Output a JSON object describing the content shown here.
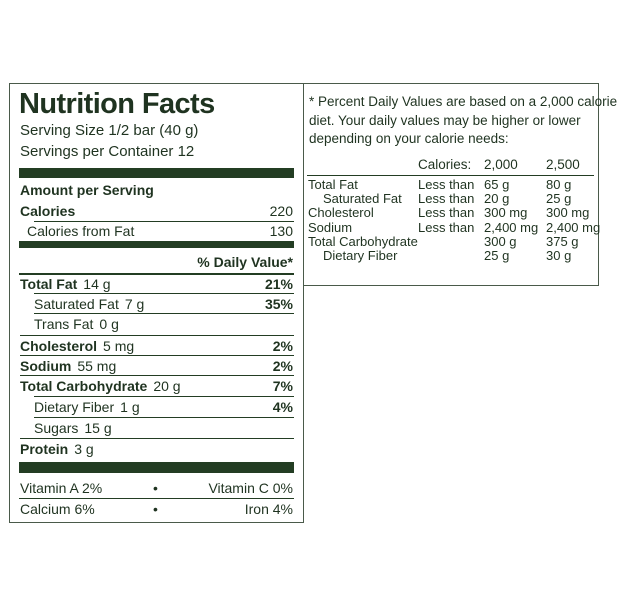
{
  "title": "Nutrition Facts",
  "serving_size": "Serving Size 1/2 bar (40 g)",
  "servings": "Servings per Container 12",
  "amount_header": "Amount per Serving",
  "calories": {
    "label": "Calories",
    "value": "220"
  },
  "calories_from_fat": {
    "label": "Calories from Fat",
    "value": "130"
  },
  "dv_header": "% Daily Value*",
  "nutrients": [
    {
      "label": "Total Fat",
      "amount": "14 g",
      "dv": "21%",
      "bold": true,
      "indent": false
    },
    {
      "label": "Saturated Fat",
      "amount": "7 g",
      "dv": "35%",
      "bold": false,
      "indent": true
    },
    {
      "label": "Trans Fat",
      "amount": "0 g",
      "dv": null,
      "bold": false,
      "indent": true
    },
    {
      "label": "Cholesterol",
      "amount": "5 mg",
      "dv": "2%",
      "bold": true,
      "indent": false
    },
    {
      "label": "Sodium",
      "amount": "55 mg",
      "dv": "2%",
      "bold": true,
      "indent": false
    },
    {
      "label": "Total Carbohydrate",
      "amount": "20 g",
      "dv": "7%",
      "bold": true,
      "indent": false
    },
    {
      "label": "Dietary Fiber",
      "amount": "1 g",
      "dv": "4%",
      "bold": false,
      "indent": true
    },
    {
      "label": "Sugars",
      "amount": "15 g",
      "dv": null,
      "bold": false,
      "indent": true
    },
    {
      "label": "Protein",
      "amount": "3 g",
      "dv": null,
      "bold": true,
      "indent": false
    }
  ],
  "vitamins": [
    [
      "Vitamin A 2%",
      "•",
      "Vitamin C 0%"
    ],
    [
      "Calcium 6%",
      "•",
      "Iron 4%"
    ]
  ],
  "footnote": {
    "lines": [
      "* Percent Daily Values are based on a 2,000 calorie",
      "diet. Your daily values may be higher or lower",
      "depending on your calorie needs:"
    ],
    "header": [
      "Calories:",
      "2,000",
      "2,500"
    ],
    "rows": [
      {
        "label": "Total Fat",
        "limit": "Less than",
        "v1": "65 g",
        "v2": "80 g",
        "indent": false
      },
      {
        "label": "Saturated Fat",
        "limit": "Less than",
        "v1": "20 g",
        "v2": "25 g",
        "indent": true
      },
      {
        "label": "Cholesterol",
        "limit": "Less than",
        "v1": "300 mg",
        "v2": "300 mg",
        "indent": false
      },
      {
        "label": "Sodium",
        "limit": "Less than",
        "v1": "2,400 mg",
        "v2": "2,400 mg",
        "indent": false
      },
      {
        "label": "Total Carbohydrate",
        "limit": null,
        "v1": "300 g",
        "v2": "375 g",
        "indent": false
      },
      {
        "label": "Dietary Fiber",
        "limit": null,
        "v1": "25 g",
        "v2": "30 g",
        "indent": true
      }
    ]
  }
}
